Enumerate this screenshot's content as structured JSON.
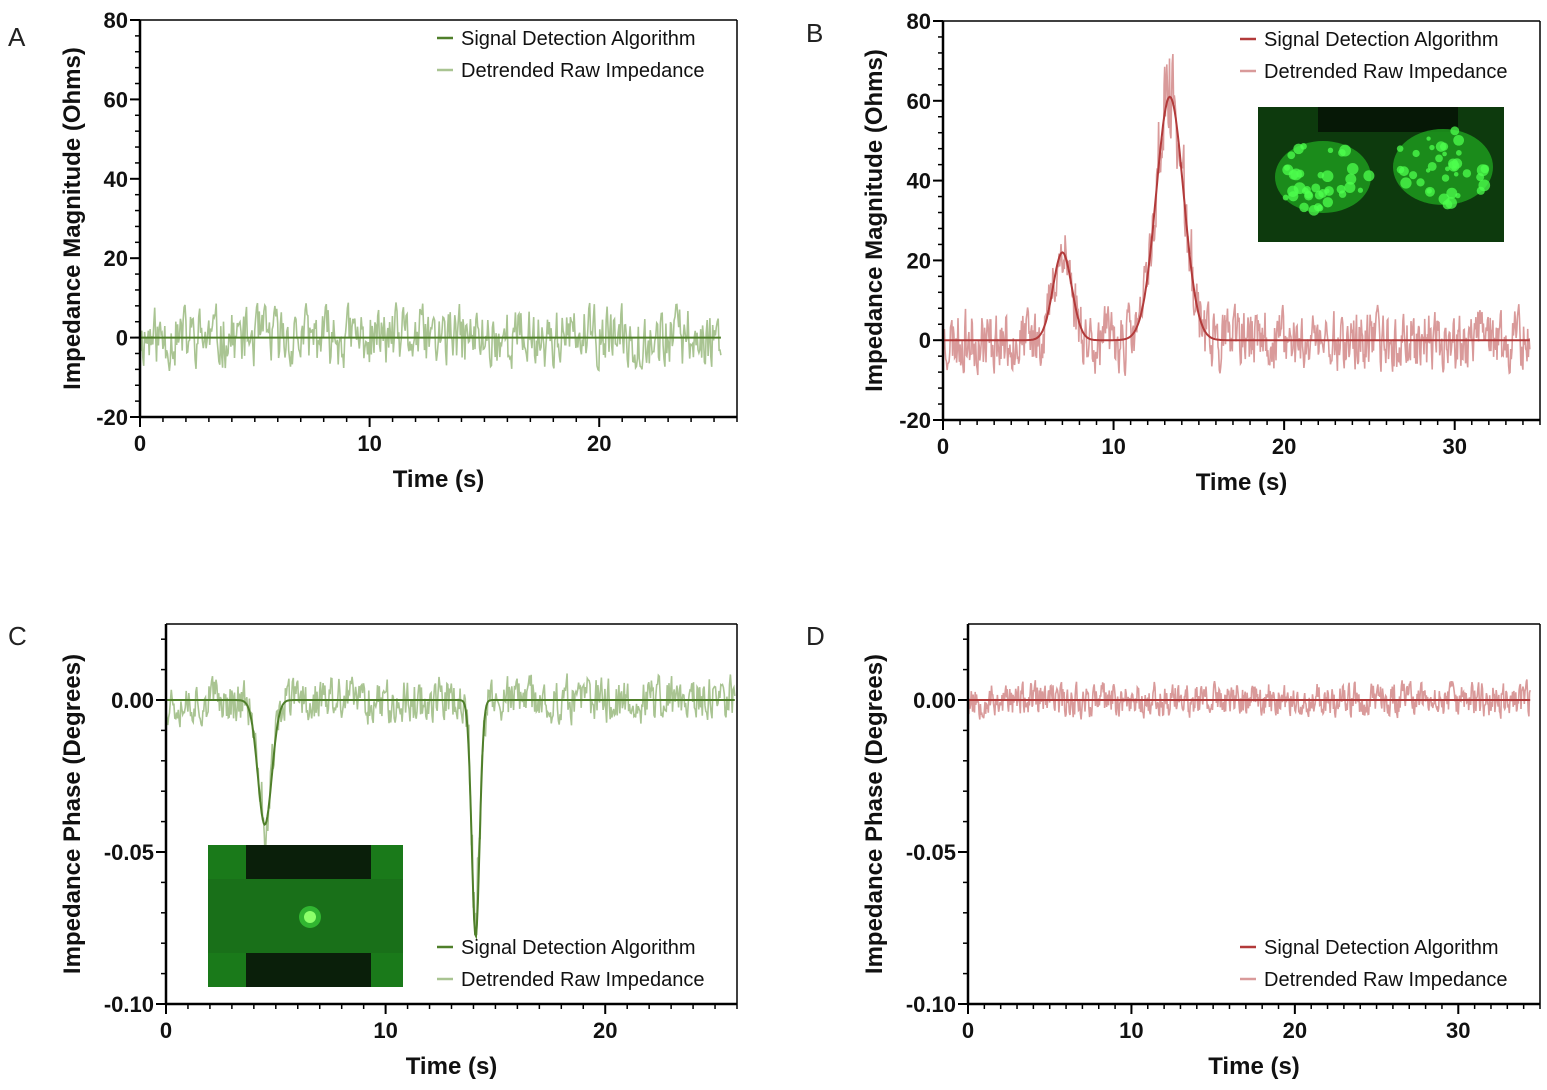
{
  "colors": {
    "green_fit": "#4f7f2a",
    "green_raw": "#a9c492",
    "red_fit": "#b23a3a",
    "red_raw": "#d99a9a",
    "axis": "#000000"
  },
  "chart_data": [
    {
      "panel": "A",
      "type": "line",
      "xlabel": "Time (s)",
      "ylabel": "Impedance Magnitude (Ohms)",
      "xlim": [
        0,
        26
      ],
      "ylim": [
        -20,
        80
      ],
      "xticks": [
        0,
        10,
        20
      ],
      "yticks": [
        -20,
        0,
        20,
        40,
        60,
        80
      ],
      "ytick_labels": [
        "-20",
        "0",
        "20",
        "40",
        "60",
        "80"
      ],
      "x_end": 25.3,
      "legend_position": "top-right",
      "series": [
        {
          "name": "Signal Detection Algorithm",
          "role": "fit",
          "color": "#4f7f2a",
          "peaks": []
        },
        {
          "name": "Detrended Raw Impedance",
          "role": "raw",
          "color": "#a9c492",
          "noise_amplitude": 9,
          "seed": 11
        }
      ],
      "inset": null
    },
    {
      "panel": "B",
      "type": "line",
      "xlabel": "Time (s)",
      "ylabel": "Impedance Magnitude (Ohms)",
      "xlim": [
        0,
        35
      ],
      "ylim": [
        -20,
        80
      ],
      "xticks": [
        0,
        10,
        20,
        30
      ],
      "yticks": [
        -20,
        0,
        20,
        40,
        60,
        80
      ],
      "ytick_labels": [
        "-20",
        "0",
        "20",
        "40",
        "60",
        "80"
      ],
      "x_end": 34.4,
      "legend_position": "top-right",
      "series": [
        {
          "name": "Signal Detection Algorithm",
          "role": "fit",
          "color": "#b23a3a",
          "peaks": [
            {
              "x": 7.0,
              "height": 22,
              "width": 0.55
            },
            {
              "x": 13.3,
              "height": 61,
              "width": 0.8
            }
          ]
        },
        {
          "name": "Detrended Raw Impedance",
          "role": "raw",
          "color": "#d99a9a",
          "noise_amplitude": 9,
          "seed": 23
        }
      ],
      "inset": {
        "image": "fluorescence-two-cell-cluster",
        "position": "top-right"
      }
    },
    {
      "panel": "C",
      "type": "line",
      "xlabel": "Time (s)",
      "ylabel": "Impedance Phase (Degrees)",
      "xlim": [
        0,
        26
      ],
      "ylim": [
        -0.1,
        0.025
      ],
      "xticks": [
        0,
        10,
        20
      ],
      "yticks": [
        -0.1,
        -0.05,
        0.0
      ],
      "ytick_labels": [
        "-0.10",
        "-0.05",
        "0.00"
      ],
      "x_end": 25.9,
      "legend_position": "bottom-right",
      "series": [
        {
          "name": "Signal Detection Algorithm",
          "role": "fit",
          "color": "#4f7f2a",
          "peaks": [
            {
              "x": 4.5,
              "height": -0.041,
              "width": 0.32
            },
            {
              "x": 14.1,
              "height": -0.078,
              "width": 0.18
            }
          ]
        },
        {
          "name": "Detrended Raw Impedance",
          "role": "raw",
          "color": "#a9c492",
          "noise_amplitude": 0.009,
          "seed": 37
        }
      ],
      "inset": {
        "image": "fluorescence-single-cell",
        "position": "bottom-left"
      }
    },
    {
      "panel": "D",
      "type": "line",
      "xlabel": "Time (s)",
      "ylabel": "Impedance Phase (Degrees)",
      "xlim": [
        0,
        35
      ],
      "ylim": [
        -0.1,
        0.025
      ],
      "xticks": [
        0,
        10,
        20,
        30
      ],
      "yticks": [
        -0.1,
        -0.05,
        0.0
      ],
      "ytick_labels": [
        "-0.10",
        "-0.05",
        "0.00"
      ],
      "x_end": 34.4,
      "legend_position": "bottom-right",
      "series": [
        {
          "name": "Signal Detection Algorithm",
          "role": "fit",
          "color": "#b23a3a",
          "peaks": []
        },
        {
          "name": "Detrended Raw Impedance",
          "role": "raw",
          "color": "#d99a9a",
          "noise_amplitude": 0.0065,
          "seed": 53
        }
      ],
      "inset": null
    }
  ]
}
